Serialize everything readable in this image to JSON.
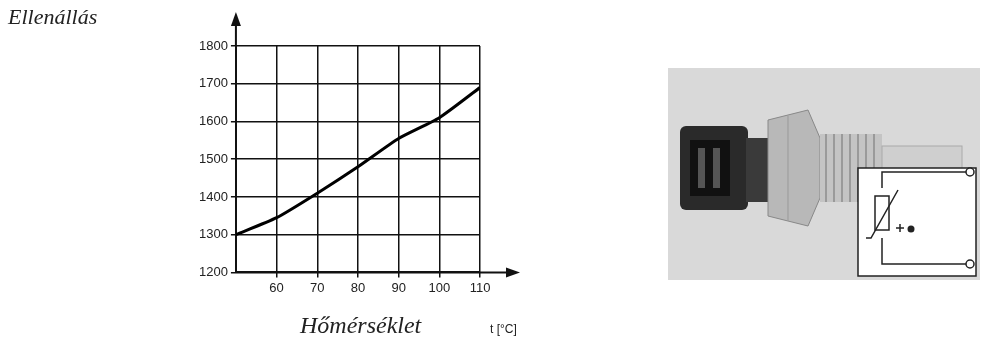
{
  "chart_data": {
    "type": "line",
    "ylabel": "Ellenállás",
    "xlabel": "Hőmérséklet",
    "annotations": [
      "t [°C]"
    ],
    "x": [
      50,
      60,
      70,
      80,
      90,
      100,
      110
    ],
    "series": [
      {
        "name": "Ellenállás",
        "color": "#000000",
        "values": [
          1300,
          1345,
          1410,
          1480,
          1555,
          1610,
          1690
        ]
      }
    ],
    "xlim": [
      50,
      110
    ],
    "xticks": [
      60,
      70,
      80,
      90,
      100,
      110
    ],
    "ylim": [
      1200,
      1800
    ],
    "yticks": [
      1200,
      1300,
      1400,
      1500,
      1600,
      1700,
      1800
    ],
    "grid": true
  }
}
